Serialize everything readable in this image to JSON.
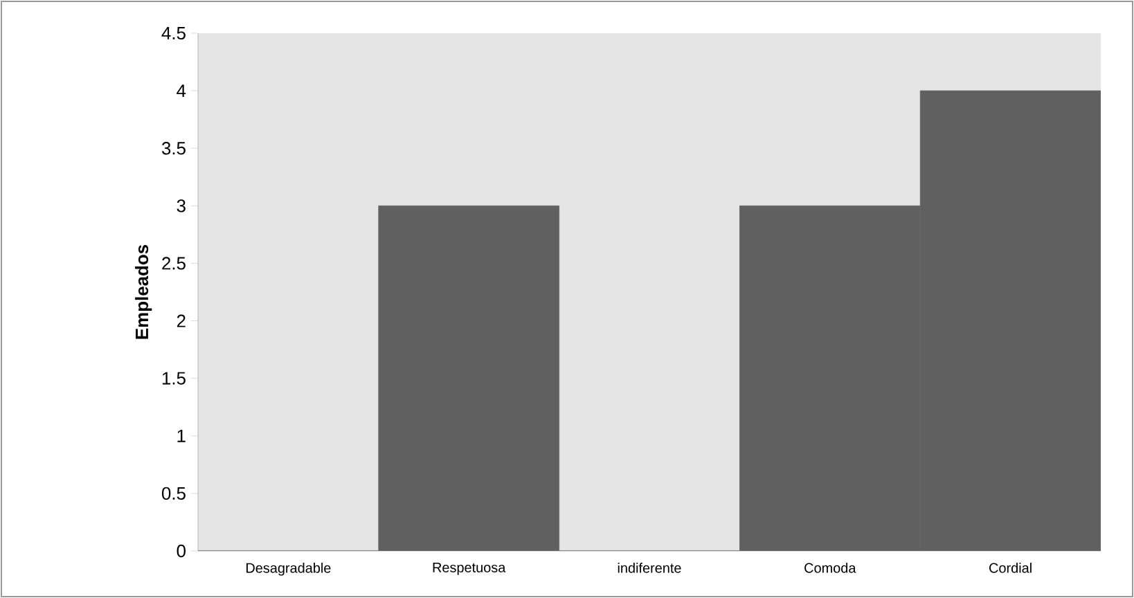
{
  "chart_data": {
    "type": "bar",
    "ylabel": "Empleados",
    "categories": [
      "Desagradable",
      "Respetuosa",
      "indiferente",
      "Comoda",
      "Cordial"
    ],
    "values": [
      0,
      3,
      0,
      3,
      4
    ],
    "color": "#606060",
    "ylim": [
      0,
      4.5
    ],
    "yticks": [
      0,
      0.5,
      1,
      1.5,
      2,
      2.5,
      3,
      3.5,
      4,
      4.5
    ],
    "grid": false
  }
}
